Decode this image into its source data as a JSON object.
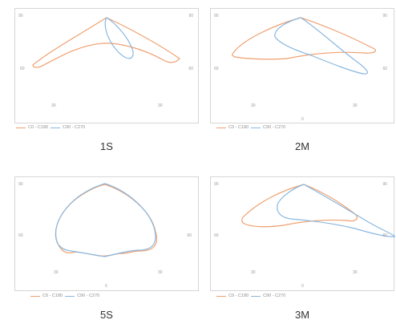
{
  "colors": {
    "c0_c180": "#f0a070",
    "c90_c270": "#8ab8e0"
  },
  "legend": {
    "c0_c180": "C0 - C180",
    "c90_c270": "C90 - C270"
  },
  "chart_data": [
    {
      "type": "polar-outline",
      "caption": "1S",
      "ticks": {
        "top_left": "90",
        "top_right": "90",
        "mid_left": "60",
        "mid_right": "60",
        "bot_left": "30",
        "bot_right": "30"
      },
      "series": [
        {
          "name": "C0 - C180",
          "shape": "wide-narrow"
        },
        {
          "name": "C90 - C270",
          "shape": "narrow-drop"
        }
      ]
    },
    {
      "type": "polar-outline",
      "caption": "2M",
      "ticks": {
        "top_left": "90",
        "top_right": "90",
        "mid_left": "60",
        "mid_right": "60",
        "bot_left": "30",
        "bot_right": "30",
        "bot_center": "0"
      },
      "series": [
        {
          "name": "C0 - C180",
          "shape": "wide-oval"
        },
        {
          "name": "C90 - C270",
          "shape": "tilted"
        }
      ]
    },
    {
      "type": "polar-outline",
      "caption": "5S",
      "ticks": {
        "top_left": "90",
        "mid_left": "60",
        "mid_right": "60",
        "bot_left": "30",
        "bot_right": "30",
        "bot_center": "0"
      },
      "series": [
        {
          "name": "C0 - C180",
          "shape": "round"
        },
        {
          "name": "C90 - C270",
          "shape": "round"
        }
      ]
    },
    {
      "type": "polar-outline",
      "caption": "3M",
      "ticks": {
        "top_left": "90",
        "top_right": "90",
        "mid_left": "60",
        "mid_right": "60",
        "bot_left": "30",
        "bot_right": "30",
        "bot_center": "0"
      },
      "series": [
        {
          "name": "C0 - C180",
          "shape": "wide-oval"
        },
        {
          "name": "C90 - C270",
          "shape": "long-tail"
        }
      ]
    }
  ]
}
